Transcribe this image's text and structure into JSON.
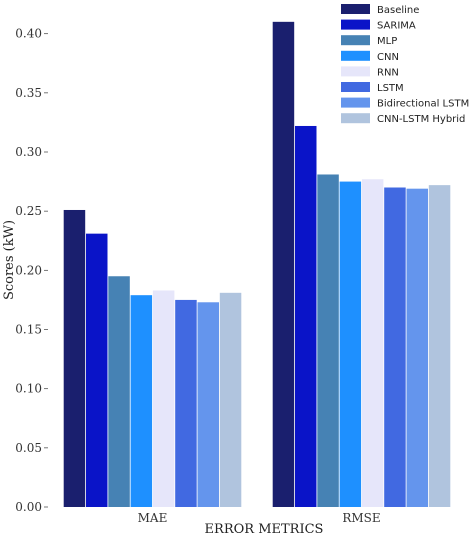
{
  "chart_data": {
    "type": "bar",
    "categories": [
      "MAE",
      "RMSE"
    ],
    "series": [
      {
        "name": "Baseline",
        "color": "#1a1f6e",
        "values": [
          0.251,
          0.41
        ]
      },
      {
        "name": "SARIMA",
        "color": "#0a14c8",
        "values": [
          0.231,
          0.322
        ]
      },
      {
        "name": "MLP",
        "color": "#4682b4",
        "values": [
          0.195,
          0.281
        ]
      },
      {
        "name": "CNN",
        "color": "#1e90ff",
        "values": [
          0.179,
          0.275
        ]
      },
      {
        "name": "RNN",
        "color": "#e6e6fa",
        "values": [
          0.183,
          0.277
        ]
      },
      {
        "name": "LSTM",
        "color": "#4169e1",
        "values": [
          0.175,
          0.27
        ]
      },
      {
        "name": "Bidirectional LSTM",
        "color": "#6495ed",
        "values": [
          0.173,
          0.269
        ]
      },
      {
        "name": "CNN-LSTM Hybrid",
        "color": "#b0c4de",
        "values": [
          0.181,
          0.272
        ]
      }
    ],
    "title": "",
    "xlabel": "ERROR METRICS",
    "ylabel": "Scores (kW)",
    "ylim": [
      0,
      0.42
    ],
    "yticks": [
      0.0,
      0.05,
      0.1,
      0.15,
      0.2,
      0.25,
      0.3,
      0.35,
      0.4
    ],
    "ytick_labels": [
      "0.00",
      "0.05",
      "0.10",
      "0.15",
      "0.20",
      "0.25",
      "0.30",
      "0.35",
      "0.40"
    ],
    "grid": false,
    "legend_position": "top-right"
  }
}
